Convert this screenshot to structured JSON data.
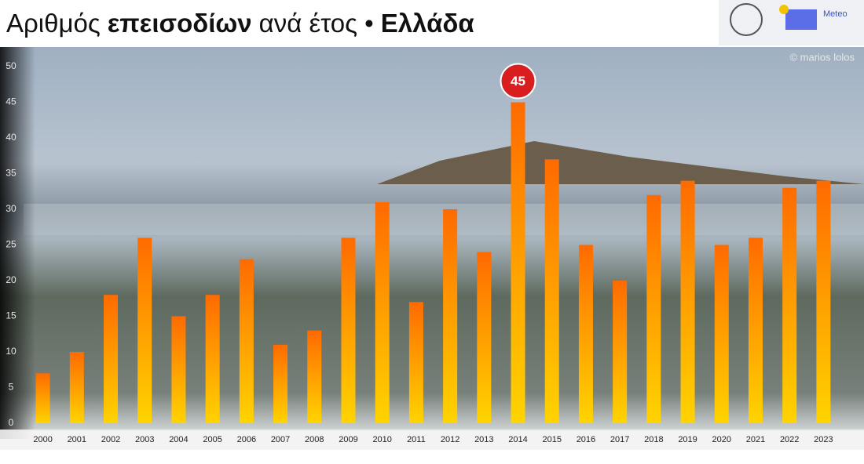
{
  "chart_data": {
    "type": "bar",
    "title_segments": [
      {
        "text": "Αριθμός",
        "bold": false
      },
      {
        "text": "επεισοδίων",
        "bold": true
      },
      {
        "text": "ανά έτος •",
        "bold": false
      },
      {
        "text": "Ελλάδα",
        "bold": true
      }
    ],
    "credit": "© marios lolos",
    "logo_text": "Meteo",
    "categories": [
      "2000",
      "2001",
      "2002",
      "2003",
      "2004",
      "2005",
      "2006",
      "2007",
      "2008",
      "2009",
      "2010",
      "2011",
      "2012",
      "2013",
      "2014",
      "2015",
      "2016",
      "2017",
      "2018",
      "2019",
      "2020",
      "2021",
      "2022",
      "2023"
    ],
    "values": [
      7,
      10,
      18,
      26,
      15,
      18,
      23,
      11,
      13,
      26,
      31,
      17,
      30,
      24,
      45,
      37,
      25,
      20,
      32,
      34,
      25,
      26,
      33,
      34
    ],
    "color_top": "#ff6a00",
    "color_bottom": "#ffd400",
    "labeled_categories": [
      "2014"
    ],
    "label_color": "#d81e1e",
    "ylim": [
      0,
      50
    ],
    "yticks": [
      0,
      5,
      10,
      15,
      20,
      25,
      30,
      35,
      40,
      45,
      50
    ],
    "grid": false
  }
}
